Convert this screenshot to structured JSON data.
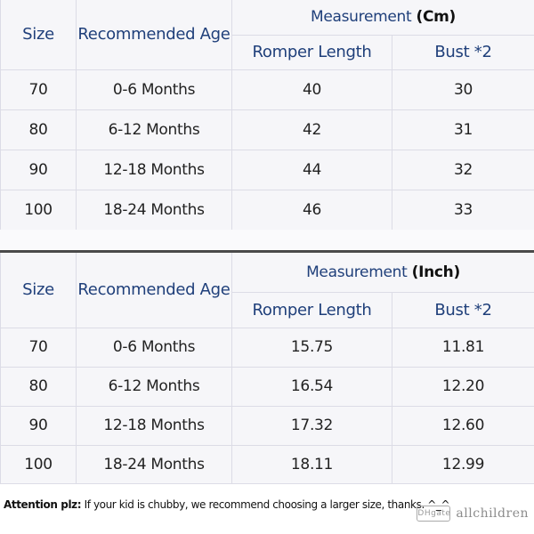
{
  "cm_table": {
    "headers": {
      "size": "Size",
      "age": "Recommended Age",
      "group_label": "Measurement",
      "group_unit": "(Cm)",
      "romper_length": "Romper Length",
      "bust": "Bust *2"
    },
    "rows": [
      {
        "size": "70",
        "age": "0-6 Months",
        "length": "40",
        "bust": "30"
      },
      {
        "size": "80",
        "age": "6-12 Months",
        "length": "42",
        "bust": "31"
      },
      {
        "size": "90",
        "age": "12-18 Months",
        "length": "44",
        "bust": "32"
      },
      {
        "size": "100",
        "age": "18-24 Months",
        "length": "46",
        "bust": "33"
      }
    ]
  },
  "inch_table": {
    "headers": {
      "size": "Size",
      "age": "Recommended Age",
      "group_label": "Measurement",
      "group_unit": "(Inch)",
      "romper_length": "Romper Length",
      "bust": "Bust *2"
    },
    "rows": [
      {
        "size": "70",
        "age": "0-6 Months",
        "length": "15.75",
        "bust": "11.81"
      },
      {
        "size": "80",
        "age": "6-12 Months",
        "length": "16.54",
        "bust": "12.20"
      },
      {
        "size": "90",
        "age": "12-18 Months",
        "length": "17.32",
        "bust": "12.60"
      },
      {
        "size": "100",
        "age": "18-24 Months",
        "length": "18.11",
        "bust": "12.99"
      }
    ]
  },
  "note": {
    "label": "Attention plz:",
    "text": " If your kid is chubby, we recommend choosing a larger size, thanks. ^_^"
  },
  "watermark": {
    "logo_text": "DHgate",
    "text": "allchildren"
  }
}
